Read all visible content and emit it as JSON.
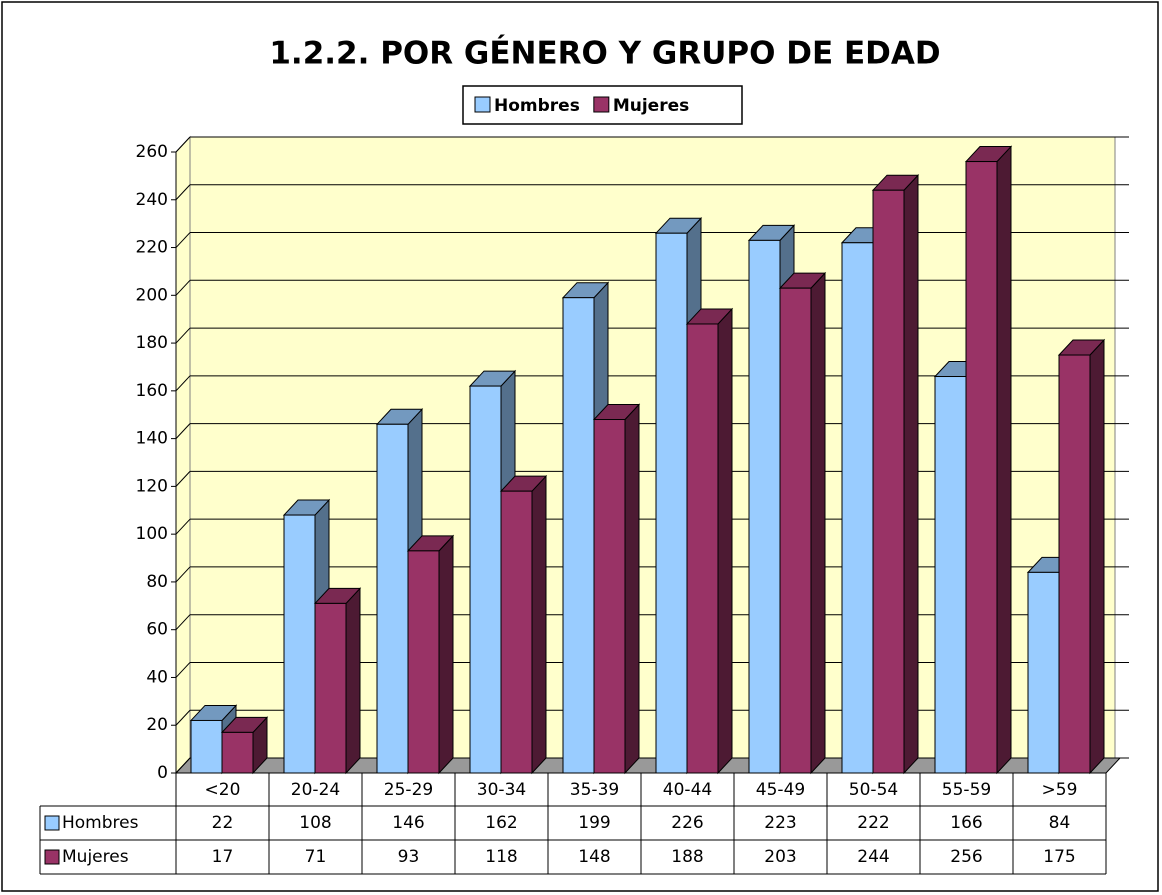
{
  "chart_data": {
    "type": "bar3d",
    "title": "1.2.2. POR GÉNERO Y GRUPO DE EDAD",
    "categories": [
      "<20",
      "20-24",
      "25-29",
      "30-34",
      "35-39",
      "40-44",
      "45-49",
      "50-54",
      "55-59",
      ">59"
    ],
    "series": [
      {
        "name": "Hombres",
        "color": "#99ccff",
        "values": [
          22,
          108,
          146,
          162,
          199,
          226,
          223,
          222,
          166,
          84
        ]
      },
      {
        "name": "Mujeres",
        "color": "#993366",
        "values": [
          17,
          71,
          93,
          118,
          148,
          188,
          203,
          244,
          256,
          175
        ]
      }
    ],
    "ylim": [
      0,
      260
    ],
    "yticks": [
      0,
      20,
      40,
      60,
      80,
      100,
      120,
      140,
      160,
      180,
      200,
      220,
      240,
      260
    ],
    "grid": true,
    "legend": "top",
    "data_table": true
  }
}
